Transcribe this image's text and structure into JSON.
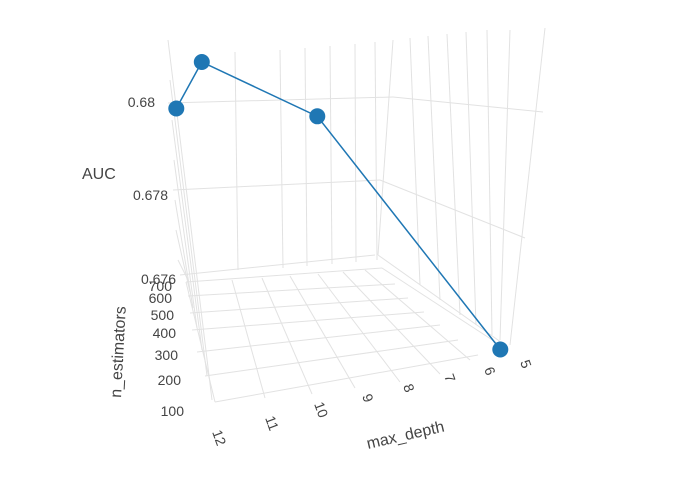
{
  "chart_data": {
    "type": "scatter3d",
    "mode": "lines+markers",
    "series_color": "#1f77b4",
    "axes": {
      "x": {
        "label": "max_depth",
        "ticks": [
          "12",
          "11",
          "10",
          "9",
          "8",
          "7",
          "6",
          "5"
        ]
      },
      "y": {
        "label": "n_estimators",
        "ticks": [
          "100",
          "200",
          "300",
          "400",
          "500",
          "600",
          "700"
        ]
      },
      "z": {
        "label": "AUC",
        "ticks": [
          "0.676",
          "0.678",
          "0.68"
        ]
      }
    },
    "points": [
      {
        "max_depth": 12,
        "n_estimators": 700,
        "AUC": 0.6799
      },
      {
        "max_depth": 11,
        "n_estimators": 700,
        "AUC": 0.6809
      },
      {
        "max_depth": 7,
        "n_estimators": 700,
        "AUC": 0.6795
      },
      {
        "max_depth": 5,
        "n_estimators": 100,
        "AUC": 0.6759
      }
    ]
  }
}
